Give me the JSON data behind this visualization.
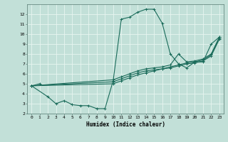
{
  "xlabel": "Humidex (Indice chaleur)",
  "xlim": [
    -0.5,
    23.5
  ],
  "ylim": [
    2,
    13
  ],
  "yticks": [
    2,
    3,
    4,
    5,
    6,
    7,
    8,
    9,
    10,
    11,
    12
  ],
  "xticks": [
    0,
    1,
    2,
    3,
    4,
    5,
    6,
    7,
    8,
    9,
    10,
    11,
    12,
    13,
    14,
    15,
    16,
    17,
    18,
    19,
    20,
    21,
    22,
    23
  ],
  "background_color": "#c2e0d8",
  "grid_color": "#e8f5f0",
  "line_color": "#1a6b5a",
  "series": [
    {
      "x": [
        0,
        1
      ],
      "y": [
        4.8,
        5.0
      ]
    },
    {
      "x": [
        0,
        2,
        3,
        4,
        5,
        6,
        7,
        8,
        9,
        10,
        11,
        12,
        13,
        14,
        15,
        16,
        17,
        18,
        19,
        20,
        21,
        22,
        23
      ],
      "y": [
        4.8,
        3.7,
        3.0,
        3.3,
        2.9,
        2.8,
        2.8,
        2.5,
        2.5,
        5.3,
        11.5,
        11.7,
        12.2,
        12.5,
        12.5,
        11.1,
        8.0,
        7.0,
        6.6,
        7.2,
        7.2,
        9.0,
        9.7
      ]
    },
    {
      "x": [
        0,
        10,
        11,
        12,
        13,
        14,
        15,
        16,
        17,
        18,
        19,
        20,
        21,
        22,
        23
      ],
      "y": [
        4.8,
        5.4,
        5.7,
        6.0,
        6.3,
        6.5,
        6.6,
        6.7,
        6.9,
        8.0,
        7.2,
        7.3,
        7.5,
        8.0,
        9.7
      ]
    },
    {
      "x": [
        0,
        10,
        11,
        12,
        13,
        14,
        15,
        16,
        17,
        18,
        19,
        20,
        21,
        22,
        23
      ],
      "y": [
        4.8,
        5.2,
        5.5,
        5.8,
        6.1,
        6.3,
        6.4,
        6.5,
        6.7,
        6.9,
        7.1,
        7.2,
        7.4,
        7.9,
        9.6
      ]
    },
    {
      "x": [
        0,
        10,
        11,
        12,
        13,
        14,
        15,
        16,
        17,
        18,
        19,
        20,
        21,
        22,
        23
      ],
      "y": [
        4.8,
        5.0,
        5.3,
        5.6,
        5.9,
        6.1,
        6.3,
        6.5,
        6.6,
        6.8,
        7.0,
        7.1,
        7.3,
        7.8,
        9.5
      ]
    }
  ]
}
